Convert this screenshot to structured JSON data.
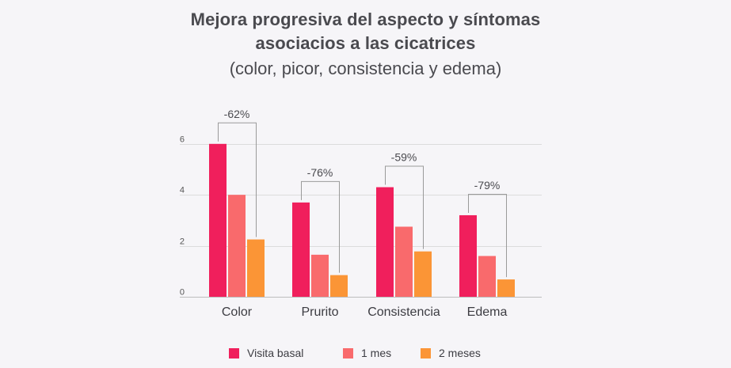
{
  "title": {
    "line1": "Mejora progresiva del aspecto y síntomas",
    "line2": "asociacios a las cicatrices",
    "subtitle": "(color, picor, consistencia y edema)"
  },
  "colors": {
    "basal": "#f01f5c",
    "mes1": "#f96a6c",
    "mes2": "#fb9536",
    "grid": "#dcdcdc",
    "bracket": "#9a9a9a"
  },
  "chart_data": {
    "type": "bar",
    "title": "Mejora progresiva del aspecto y síntomas asociacios a las cicatrices",
    "subtitle": "(color, picor, consistencia y edema)",
    "categories": [
      "Color",
      "Prurito",
      "Consistencia",
      "Edema"
    ],
    "series": [
      {
        "name": "Visita basal",
        "key": "basal",
        "values": [
          6.0,
          3.7,
          4.3,
          3.2
        ]
      },
      {
        "name": "1 mes",
        "key": "mes1",
        "values": [
          4.0,
          1.65,
          2.75,
          1.6
        ]
      },
      {
        "name": "2 meses",
        "key": "mes2",
        "values": [
          2.25,
          0.85,
          1.78,
          0.68
        ]
      }
    ],
    "annotations": [
      "-62%",
      "-76%",
      "-59%",
      "-79%"
    ],
    "yticks": [
      0,
      2,
      4,
      6
    ],
    "ylim": [
      0,
      6
    ],
    "xlabel": "",
    "ylabel": "",
    "grid": true,
    "legend_position": "bottom"
  },
  "legend": [
    {
      "label": "Visita basal",
      "key": "basal"
    },
    {
      "label": "1 mes",
      "key": "mes1"
    },
    {
      "label": "2 meses",
      "key": "mes2"
    }
  ]
}
